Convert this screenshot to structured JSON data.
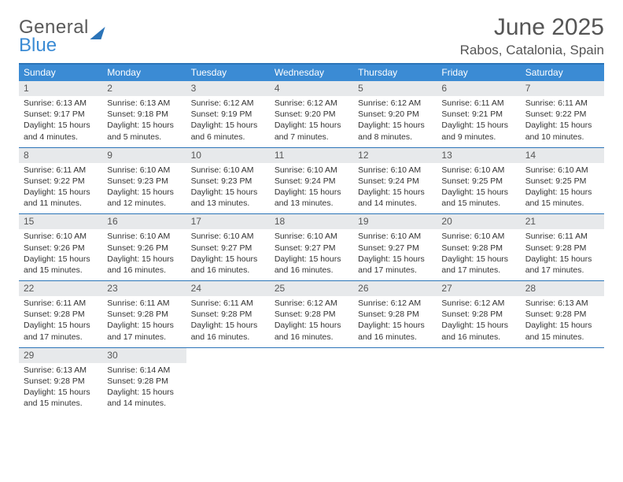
{
  "logo": {
    "top": "General",
    "bottom": "Blue"
  },
  "header": {
    "month_title": "June 2025",
    "location": "Rabos, Catalonia, Spain"
  },
  "colors": {
    "header_bar": "#3b8bd4",
    "border": "#2b74b8",
    "daynum_bg": "#e7e9eb",
    "text_main": "#333333",
    "text_title": "#555555",
    "logo_blue": "#3b8bd4"
  },
  "weekdays": [
    "Sunday",
    "Monday",
    "Tuesday",
    "Wednesday",
    "Thursday",
    "Friday",
    "Saturday"
  ],
  "days": [
    {
      "n": "1",
      "sr": "6:13 AM",
      "ss": "9:17 PM",
      "dl": "15 hours and 4 minutes."
    },
    {
      "n": "2",
      "sr": "6:13 AM",
      "ss": "9:18 PM",
      "dl": "15 hours and 5 minutes."
    },
    {
      "n": "3",
      "sr": "6:12 AM",
      "ss": "9:19 PM",
      "dl": "15 hours and 6 minutes."
    },
    {
      "n": "4",
      "sr": "6:12 AM",
      "ss": "9:20 PM",
      "dl": "15 hours and 7 minutes."
    },
    {
      "n": "5",
      "sr": "6:12 AM",
      "ss": "9:20 PM",
      "dl": "15 hours and 8 minutes."
    },
    {
      "n": "6",
      "sr": "6:11 AM",
      "ss": "9:21 PM",
      "dl": "15 hours and 9 minutes."
    },
    {
      "n": "7",
      "sr": "6:11 AM",
      "ss": "9:22 PM",
      "dl": "15 hours and 10 minutes."
    },
    {
      "n": "8",
      "sr": "6:11 AM",
      "ss": "9:22 PM",
      "dl": "15 hours and 11 minutes."
    },
    {
      "n": "9",
      "sr": "6:10 AM",
      "ss": "9:23 PM",
      "dl": "15 hours and 12 minutes."
    },
    {
      "n": "10",
      "sr": "6:10 AM",
      "ss": "9:23 PM",
      "dl": "15 hours and 13 minutes."
    },
    {
      "n": "11",
      "sr": "6:10 AM",
      "ss": "9:24 PM",
      "dl": "15 hours and 13 minutes."
    },
    {
      "n": "12",
      "sr": "6:10 AM",
      "ss": "9:24 PM",
      "dl": "15 hours and 14 minutes."
    },
    {
      "n": "13",
      "sr": "6:10 AM",
      "ss": "9:25 PM",
      "dl": "15 hours and 15 minutes."
    },
    {
      "n": "14",
      "sr": "6:10 AM",
      "ss": "9:25 PM",
      "dl": "15 hours and 15 minutes."
    },
    {
      "n": "15",
      "sr": "6:10 AM",
      "ss": "9:26 PM",
      "dl": "15 hours and 15 minutes."
    },
    {
      "n": "16",
      "sr": "6:10 AM",
      "ss": "9:26 PM",
      "dl": "15 hours and 16 minutes."
    },
    {
      "n": "17",
      "sr": "6:10 AM",
      "ss": "9:27 PM",
      "dl": "15 hours and 16 minutes."
    },
    {
      "n": "18",
      "sr": "6:10 AM",
      "ss": "9:27 PM",
      "dl": "15 hours and 16 minutes."
    },
    {
      "n": "19",
      "sr": "6:10 AM",
      "ss": "9:27 PM",
      "dl": "15 hours and 17 minutes."
    },
    {
      "n": "20",
      "sr": "6:10 AM",
      "ss": "9:28 PM",
      "dl": "15 hours and 17 minutes."
    },
    {
      "n": "21",
      "sr": "6:11 AM",
      "ss": "9:28 PM",
      "dl": "15 hours and 17 minutes."
    },
    {
      "n": "22",
      "sr": "6:11 AM",
      "ss": "9:28 PM",
      "dl": "15 hours and 17 minutes."
    },
    {
      "n": "23",
      "sr": "6:11 AM",
      "ss": "9:28 PM",
      "dl": "15 hours and 17 minutes."
    },
    {
      "n": "24",
      "sr": "6:11 AM",
      "ss": "9:28 PM",
      "dl": "15 hours and 16 minutes."
    },
    {
      "n": "25",
      "sr": "6:12 AM",
      "ss": "9:28 PM",
      "dl": "15 hours and 16 minutes."
    },
    {
      "n": "26",
      "sr": "6:12 AM",
      "ss": "9:28 PM",
      "dl": "15 hours and 16 minutes."
    },
    {
      "n": "27",
      "sr": "6:12 AM",
      "ss": "9:28 PM",
      "dl": "15 hours and 16 minutes."
    },
    {
      "n": "28",
      "sr": "6:13 AM",
      "ss": "9:28 PM",
      "dl": "15 hours and 15 minutes."
    },
    {
      "n": "29",
      "sr": "6:13 AM",
      "ss": "9:28 PM",
      "dl": "15 hours and 15 minutes."
    },
    {
      "n": "30",
      "sr": "6:14 AM",
      "ss": "9:28 PM",
      "dl": "15 hours and 14 minutes."
    }
  ],
  "labels": {
    "sunrise": "Sunrise:",
    "sunset": "Sunset:",
    "daylight": "Daylight:"
  },
  "layout": {
    "start_weekday_index": 0,
    "columns": 7,
    "total_cells": 35
  }
}
